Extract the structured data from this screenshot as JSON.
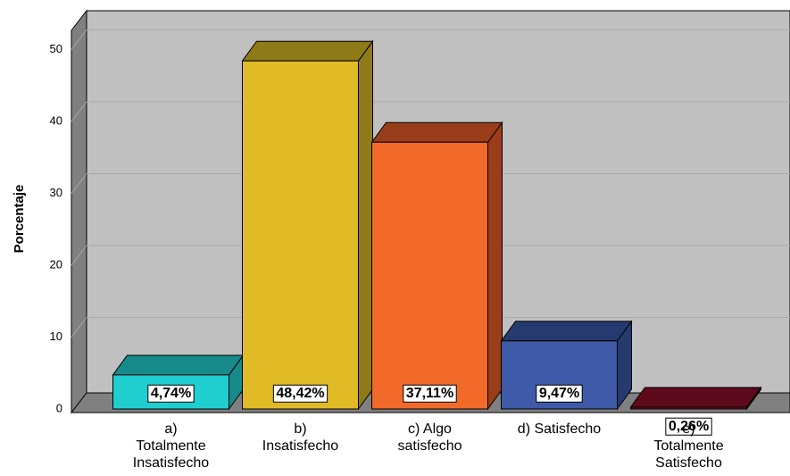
{
  "chart_data": {
    "type": "bar3d",
    "y_label": "Porcentaje",
    "categories": [
      [
        "a)",
        "Totalmente",
        "Insatisfecho"
      ],
      [
        "b)",
        "Insatisfecho"
      ],
      [
        "c) Algo",
        "satisfecho"
      ],
      [
        "d) Satisfecho"
      ],
      [
        "e)",
        "Totalmente",
        "Satisfecho"
      ]
    ],
    "values": [
      4.74,
      48.42,
      37.11,
      9.47,
      0.26
    ],
    "value_labels": [
      "4,74%",
      "48,42%",
      "37,11%",
      "9,47%",
      "0,26%"
    ],
    "colors": [
      "#1fcfcf",
      "#e0bb26",
      "#f26a2a",
      "#3e5aa8",
      "#8b0f2a"
    ],
    "top_colors": [
      "#178a8a",
      "#8f7a18",
      "#9a3d1a",
      "#253a6e",
      "#5e0a1c"
    ],
    "ylim": [
      0,
      52.5
    ],
    "yticks": [
      0,
      10,
      20,
      30,
      40,
      50
    ],
    "grid": true
  }
}
